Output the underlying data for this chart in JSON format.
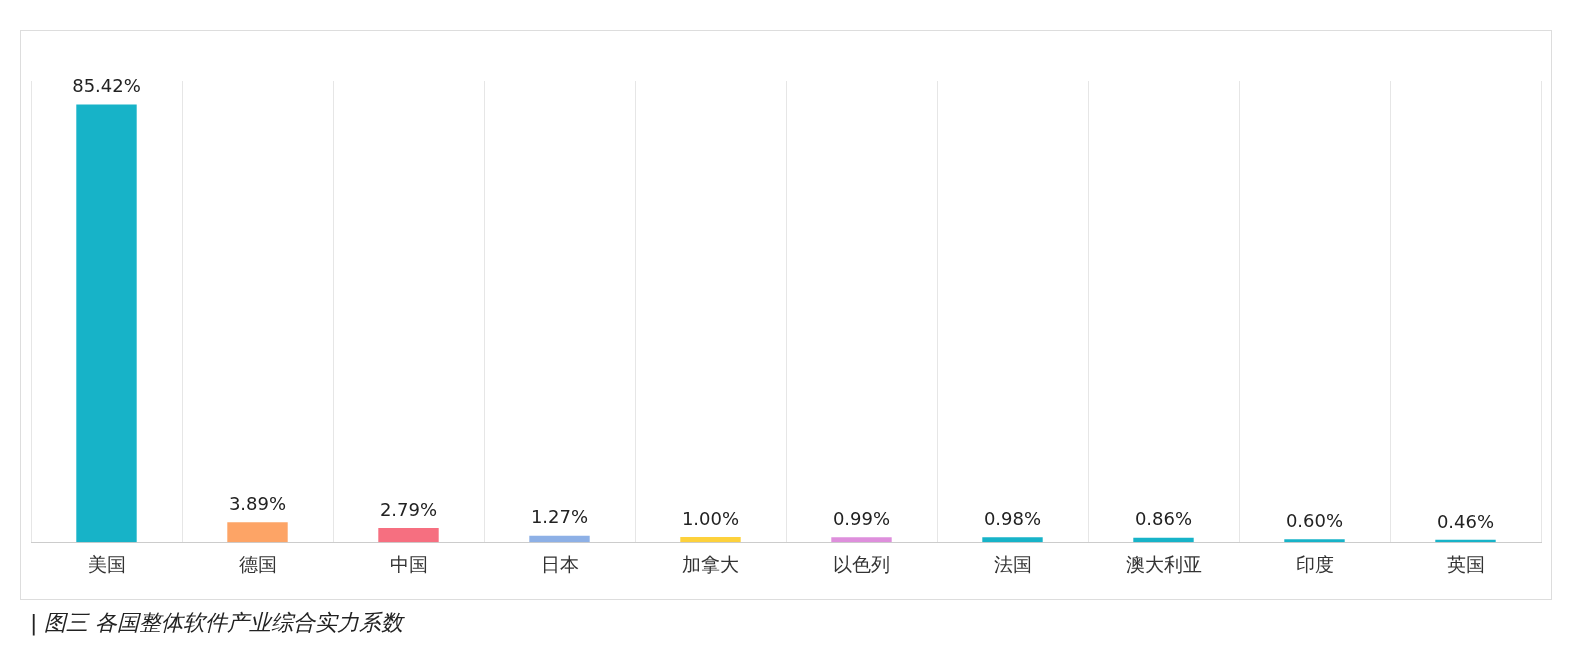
{
  "chart_data": {
    "type": "bar",
    "categories": [
      "美国",
      "德国",
      "中国",
      "日本",
      "加拿大",
      "以色列",
      "法国",
      "澳大利亚",
      "印度",
      "英国"
    ],
    "values": [
      85.42,
      3.89,
      2.79,
      1.27,
      1.0,
      0.99,
      0.98,
      0.86,
      0.6,
      0.46
    ],
    "colors": [
      "#17b3c8",
      "#fda466",
      "#f66f80",
      "#8db0e6",
      "#fdd13c",
      "#de8fdc",
      "#17b3c8",
      "#17b3c8",
      "#17b3c8",
      "#17b3c8"
    ],
    "value_labels": [
      "85.42%",
      "3.89%",
      "2.79%",
      "1.27%",
      "1.00%",
      "0.99%",
      "0.98%",
      "0.86%",
      "0.60%",
      "0.46%"
    ],
    "grid": "x",
    "annotations": [
      "| 图三 各国整体软件产业综合实力系数"
    ]
  }
}
